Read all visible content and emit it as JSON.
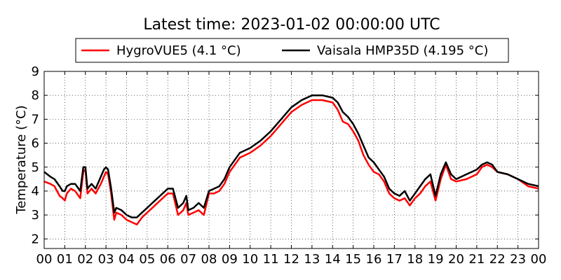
{
  "chart_data": {
    "type": "line",
    "title": "Latest time: 2023-01-02 00:00:00 UTC",
    "xlabel": "",
    "ylabel": "Temperature (°C)",
    "xlim": [
      0,
      24
    ],
    "ylim": [
      1.6,
      9
    ],
    "grid": true,
    "legend_position": "top",
    "x_ticks": [
      "00",
      "01",
      "02",
      "03",
      "04",
      "05",
      "06",
      "07",
      "08",
      "09",
      "10",
      "11",
      "12",
      "13",
      "14",
      "15",
      "16",
      "17",
      "18",
      "19",
      "20",
      "21",
      "22",
      "23",
      "00"
    ],
    "y_ticks": [
      "2",
      "3",
      "4",
      "5",
      "6",
      "7",
      "8",
      "9"
    ],
    "series": [
      {
        "name": "HygroVUE5 (4.1 °C)",
        "color": "#ff0000",
        "x": [
          0,
          0.3,
          0.5,
          0.75,
          0.9,
          1.0,
          1.1,
          1.3,
          1.5,
          1.75,
          1.9,
          2.0,
          2.1,
          2.3,
          2.5,
          2.75,
          2.9,
          3.0,
          3.1,
          3.25,
          3.4,
          3.5,
          3.75,
          4.0,
          4.25,
          4.5,
          4.75,
          5.0,
          5.25,
          5.5,
          5.75,
          6.0,
          6.25,
          6.5,
          6.75,
          6.9,
          7.0,
          7.25,
          7.5,
          7.75,
          8.0,
          8.25,
          8.5,
          8.75,
          9.0,
          9.5,
          10.0,
          10.5,
          11.0,
          11.5,
          12.0,
          12.5,
          13.0,
          13.5,
          14.0,
          14.25,
          14.5,
          14.75,
          15.0,
          15.25,
          15.5,
          15.75,
          16.0,
          16.25,
          16.5,
          16.75,
          17.0,
          17.25,
          17.5,
          17.75,
          18.0,
          18.25,
          18.5,
          18.75,
          19.0,
          19.25,
          19.5,
          19.75,
          20.0,
          20.5,
          21.0,
          21.25,
          21.5,
          21.75,
          22.0,
          22.5,
          23.0,
          23.5,
          24.0
        ],
        "values": [
          4.4,
          4.3,
          4.2,
          3.8,
          3.7,
          3.6,
          3.9,
          4.1,
          4.0,
          3.7,
          4.8,
          4.9,
          3.9,
          4.1,
          3.9,
          4.3,
          4.6,
          4.8,
          4.7,
          3.9,
          2.8,
          3.1,
          3.0,
          2.8,
          2.7,
          2.6,
          2.9,
          3.1,
          3.3,
          3.5,
          3.7,
          3.9,
          3.9,
          3.0,
          3.2,
          3.5,
          3.0,
          3.1,
          3.2,
          3.0,
          3.9,
          3.9,
          4.0,
          4.3,
          4.8,
          5.4,
          5.6,
          5.9,
          6.3,
          6.8,
          7.3,
          7.6,
          7.8,
          7.8,
          7.7,
          7.4,
          6.9,
          6.8,
          6.5,
          6.1,
          5.5,
          5.1,
          4.8,
          4.7,
          4.4,
          3.9,
          3.7,
          3.6,
          3.7,
          3.4,
          3.7,
          3.9,
          4.2,
          4.4,
          3.6,
          4.5,
          5.1,
          4.5,
          4.4,
          4.5,
          4.7,
          5.0,
          5.1,
          5.0,
          4.8,
          4.7,
          4.5,
          4.2,
          4.1
        ]
      },
      {
        "name": "Vaisala HMP35D (4.195 °C)",
        "color": "#000000",
        "x": [
          0,
          0.3,
          0.5,
          0.75,
          0.9,
          1.0,
          1.1,
          1.3,
          1.5,
          1.75,
          1.9,
          2.0,
          2.1,
          2.3,
          2.5,
          2.75,
          2.9,
          3.0,
          3.1,
          3.25,
          3.4,
          3.5,
          3.75,
          4.0,
          4.25,
          4.5,
          4.75,
          5.0,
          5.25,
          5.5,
          5.75,
          6.0,
          6.25,
          6.5,
          6.75,
          6.9,
          7.0,
          7.25,
          7.5,
          7.75,
          8.0,
          8.25,
          8.5,
          8.75,
          9.0,
          9.5,
          10.0,
          10.5,
          11.0,
          11.5,
          12.0,
          12.5,
          13.0,
          13.5,
          14.0,
          14.25,
          14.5,
          14.75,
          15.0,
          15.25,
          15.5,
          15.75,
          16.0,
          16.25,
          16.5,
          16.75,
          17.0,
          17.25,
          17.5,
          17.75,
          18.0,
          18.25,
          18.5,
          18.75,
          19.0,
          19.25,
          19.5,
          19.75,
          20.0,
          20.5,
          21.0,
          21.25,
          21.5,
          21.75,
          22.0,
          22.5,
          23.0,
          23.5,
          24.0
        ],
        "values": [
          4.8,
          4.6,
          4.5,
          4.2,
          4.0,
          4.0,
          4.2,
          4.3,
          4.3,
          4.0,
          5.0,
          5.0,
          4.1,
          4.3,
          4.1,
          4.6,
          4.9,
          5.0,
          4.9,
          4.1,
          3.1,
          3.3,
          3.2,
          3.0,
          2.9,
          2.9,
          3.1,
          3.3,
          3.5,
          3.7,
          3.9,
          4.1,
          4.1,
          3.3,
          3.5,
          3.8,
          3.2,
          3.3,
          3.5,
          3.3,
          4.0,
          4.1,
          4.2,
          4.5,
          5.0,
          5.6,
          5.8,
          6.1,
          6.5,
          7.0,
          7.5,
          7.8,
          8.0,
          8.0,
          7.9,
          7.7,
          7.3,
          7.1,
          6.8,
          6.4,
          5.9,
          5.4,
          5.2,
          4.9,
          4.6,
          4.1,
          3.9,
          3.8,
          4.0,
          3.6,
          3.9,
          4.2,
          4.5,
          4.7,
          3.8,
          4.7,
          5.2,
          4.7,
          4.5,
          4.7,
          4.9,
          5.1,
          5.2,
          5.1,
          4.8,
          4.7,
          4.5,
          4.3,
          4.2
        ]
      }
    ]
  }
}
